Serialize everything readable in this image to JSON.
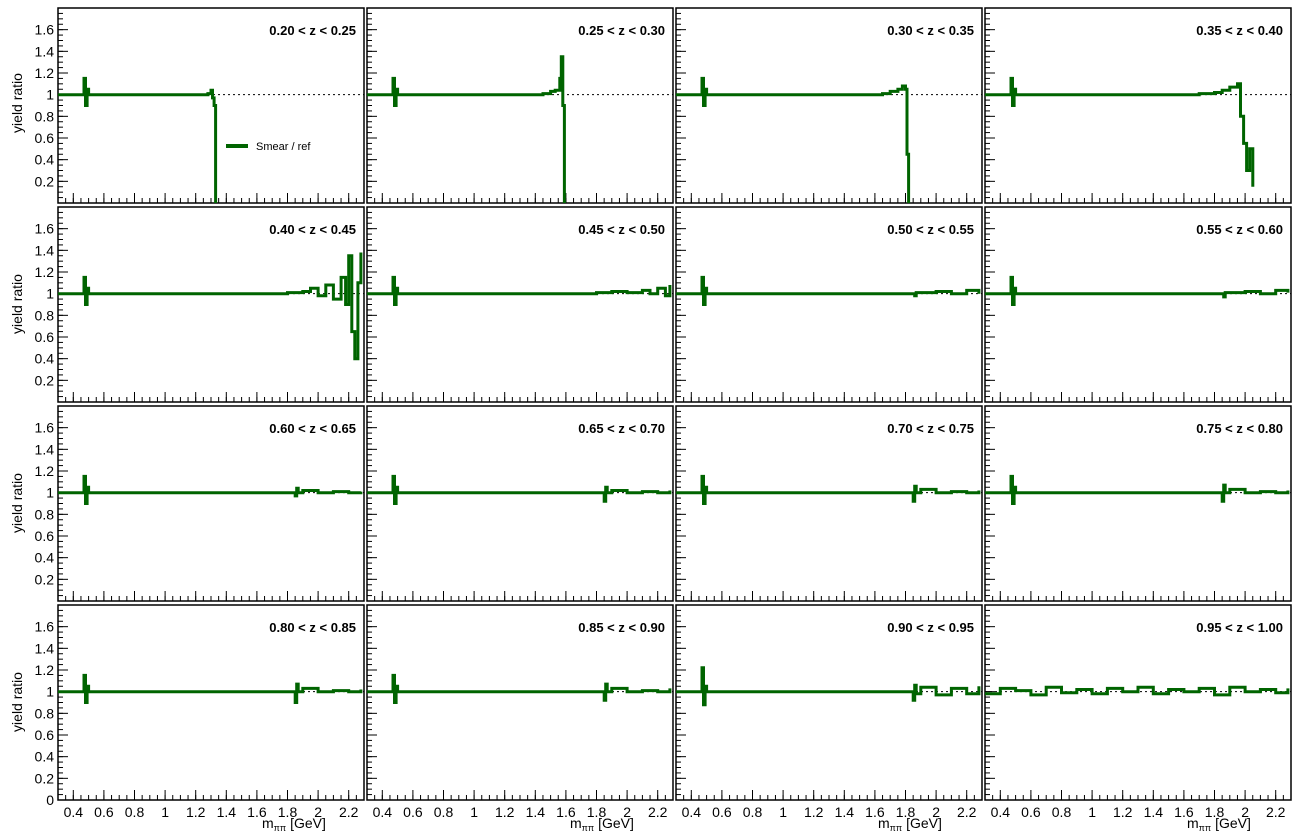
{
  "chart_data": {
    "type": "line",
    "layout": "4x4 grid of panels, shared axes",
    "ylabel": "yield ratio",
    "xlabel": "m",
    "xlabel_sub": "ππ",
    "xlabel_unit": "[GeV]",
    "xlim": [
      0.3,
      2.3
    ],
    "ylim": [
      0,
      1.8
    ],
    "x_ticks": [
      0.4,
      0.6,
      0.8,
      1,
      1.2,
      1.4,
      1.6,
      1.8,
      2,
      2.2
    ],
    "x_tick_labels": [
      "0.4",
      "0.6",
      "0.8",
      "1",
      "1.2",
      "1.4",
      "1.6",
      "1.8",
      "2",
      "2.2"
    ],
    "y_ticks": [
      0.2,
      0.4,
      0.6,
      0.8,
      1,
      1.2,
      1.4,
      1.6
    ],
    "y_tick_labels": [
      "0.2",
      "0.4",
      "0.6",
      "0.8",
      "1",
      "1.2",
      "1.4",
      "1.6"
    ],
    "y_tick_zero_label": "0",
    "reference_line": 1,
    "legend": {
      "label": "Smear  / ref",
      "color": "#006400",
      "panel": 0,
      "placement": "center-right"
    },
    "series_color": "#006400",
    "panels": [
      {
        "zlabel": "0.20 < z < 0.25",
        "series": {
          "name": "Smear  / ref",
          "x": [
            0.3,
            0.46,
            0.47,
            0.48,
            0.49,
            0.5,
            0.52,
            1.28,
            1.3,
            1.31,
            1.32,
            1.33
          ],
          "y": [
            1.0,
            1.0,
            1.15,
            0.9,
            1.05,
            1.0,
            1.0,
            1.01,
            1.04,
            0.97,
            0.9,
            0.0
          ]
        }
      },
      {
        "zlabel": "0.25 < z < 0.30",
        "series": {
          "name": "Smear  / ref",
          "x": [
            0.3,
            0.46,
            0.47,
            0.48,
            0.49,
            0.5,
            0.52,
            1.45,
            1.5,
            1.53,
            1.56,
            1.57,
            1.58,
            1.59
          ],
          "y": [
            1.0,
            1.0,
            1.15,
            0.9,
            1.05,
            1.0,
            1.0,
            1.01,
            1.03,
            1.04,
            1.15,
            1.35,
            0.9,
            0.0
          ]
        }
      },
      {
        "zlabel": "0.30 < z < 0.35",
        "series": {
          "name": "Smear  / ref",
          "x": [
            0.3,
            0.46,
            0.47,
            0.48,
            0.49,
            0.5,
            0.52,
            1.65,
            1.7,
            1.75,
            1.78,
            1.8,
            1.81,
            1.82
          ],
          "y": [
            1.0,
            1.0,
            1.15,
            0.9,
            1.05,
            1.0,
            1.0,
            1.01,
            1.03,
            1.05,
            1.08,
            1.05,
            0.45,
            0.0
          ]
        }
      },
      {
        "zlabel": "0.35 < z < 0.40",
        "series": {
          "name": "Smear  / ref",
          "x": [
            0.3,
            0.46,
            0.47,
            0.48,
            0.49,
            0.5,
            0.52,
            1.7,
            1.8,
            1.85,
            1.9,
            1.95,
            1.97,
            1.99,
            2.01,
            2.03,
            2.05
          ],
          "y": [
            1.0,
            1.0,
            1.15,
            0.9,
            1.05,
            1.0,
            1.0,
            1.01,
            1.02,
            1.04,
            1.07,
            1.1,
            0.8,
            0.55,
            0.3,
            0.5,
            0.15
          ]
        }
      },
      {
        "zlabel": "0.40 < z < 0.45",
        "series": {
          "name": "Smear  / ref",
          "x": [
            0.3,
            0.46,
            0.47,
            0.48,
            0.49,
            0.5,
            0.52,
            1.8,
            1.9,
            1.95,
            2.0,
            2.05,
            2.1,
            2.15,
            2.18,
            2.2,
            2.22,
            2.24,
            2.26,
            2.28
          ],
          "y": [
            1.0,
            1.0,
            1.15,
            0.9,
            1.05,
            1.0,
            1.0,
            1.01,
            1.02,
            1.05,
            0.98,
            1.08,
            0.95,
            1.15,
            0.9,
            1.35,
            0.65,
            0.4,
            1.1,
            1.38
          ]
        }
      },
      {
        "zlabel": "0.45 < z < 0.50",
        "series": {
          "name": "Smear  / ref",
          "x": [
            0.3,
            0.46,
            0.47,
            0.48,
            0.49,
            0.5,
            0.52,
            1.8,
            1.9,
            2.0,
            2.1,
            2.15,
            2.2,
            2.25,
            2.28
          ],
          "y": [
            1.0,
            1.0,
            1.15,
            0.9,
            1.05,
            1.0,
            1.0,
            1.01,
            1.02,
            1.01,
            1.03,
            1.0,
            1.05,
            0.98,
            1.08
          ]
        }
      },
      {
        "zlabel": "0.50 < z < 0.55",
        "series": {
          "name": "Smear  / ref",
          "x": [
            0.3,
            0.46,
            0.47,
            0.48,
            0.49,
            0.5,
            0.52,
            1.85,
            1.86,
            1.87,
            2.0,
            2.1,
            2.2,
            2.28
          ],
          "y": [
            1.0,
            1.0,
            1.15,
            0.9,
            1.05,
            1.0,
            1.0,
            1.0,
            0.98,
            1.01,
            1.02,
            1.0,
            1.03,
            1.0
          ]
        }
      },
      {
        "zlabel": "0.55 < z < 0.60",
        "series": {
          "name": "Smear  / ref",
          "x": [
            0.3,
            0.46,
            0.47,
            0.48,
            0.49,
            0.5,
            0.52,
            1.85,
            1.86,
            1.87,
            2.0,
            2.1,
            2.2,
            2.28
          ],
          "y": [
            1.0,
            1.0,
            1.15,
            0.9,
            1.05,
            1.0,
            1.0,
            1.0,
            0.97,
            1.01,
            1.02,
            1.0,
            1.03,
            1.01
          ]
        }
      },
      {
        "zlabel": "0.60 < z < 0.65",
        "series": {
          "name": "Smear  / ref",
          "x": [
            0.3,
            0.46,
            0.47,
            0.48,
            0.49,
            0.5,
            0.52,
            1.84,
            1.85,
            1.86,
            1.87,
            1.9,
            2.0,
            2.1,
            2.2,
            2.28
          ],
          "y": [
            1.0,
            1.0,
            1.15,
            0.9,
            1.05,
            1.0,
            1.0,
            1.0,
            0.97,
            1.04,
            1.0,
            1.02,
            1.0,
            1.01,
            1.0,
            1.01
          ]
        }
      },
      {
        "zlabel": "0.65 < z < 0.70",
        "series": {
          "name": "Smear  / ref",
          "x": [
            0.3,
            0.46,
            0.47,
            0.48,
            0.49,
            0.5,
            0.52,
            1.84,
            1.85,
            1.86,
            1.87,
            1.9,
            2.0,
            2.1,
            2.2,
            2.28
          ],
          "y": [
            1.0,
            1.0,
            1.15,
            0.9,
            1.05,
            1.0,
            1.0,
            1.0,
            0.92,
            1.05,
            1.0,
            1.02,
            1.0,
            1.01,
            1.0,
            1.02
          ]
        }
      },
      {
        "zlabel": "0.70 < z < 0.75",
        "series": {
          "name": "Smear  / ref",
          "x": [
            0.3,
            0.46,
            0.47,
            0.48,
            0.49,
            0.5,
            0.52,
            1.84,
            1.85,
            1.86,
            1.87,
            1.9,
            2.0,
            2.1,
            2.2,
            2.28
          ],
          "y": [
            1.0,
            1.0,
            1.15,
            0.9,
            1.05,
            1.0,
            1.0,
            1.0,
            0.92,
            1.06,
            1.0,
            1.03,
            1.0,
            1.01,
            1.0,
            1.02
          ]
        }
      },
      {
        "zlabel": "0.75 < z < 0.80",
        "series": {
          "name": "Smear  / ref",
          "x": [
            0.3,
            0.46,
            0.47,
            0.48,
            0.49,
            0.5,
            0.52,
            1.84,
            1.85,
            1.86,
            1.87,
            1.9,
            2.0,
            2.1,
            2.2,
            2.28
          ],
          "y": [
            1.0,
            1.0,
            1.15,
            0.9,
            1.05,
            1.0,
            1.0,
            1.0,
            0.92,
            1.07,
            1.0,
            1.03,
            1.0,
            1.01,
            1.0,
            1.02
          ]
        }
      },
      {
        "zlabel": "0.80 < z < 0.85",
        "series": {
          "name": "Smear  / ref",
          "x": [
            0.3,
            0.46,
            0.47,
            0.48,
            0.49,
            0.5,
            0.52,
            1.84,
            1.85,
            1.86,
            1.87,
            1.9,
            2.0,
            2.1,
            2.2,
            2.28
          ],
          "y": [
            1.0,
            1.0,
            1.15,
            0.9,
            1.05,
            1.0,
            1.0,
            1.0,
            0.9,
            1.07,
            1.0,
            1.03,
            1.0,
            1.01,
            1.0,
            1.02
          ]
        }
      },
      {
        "zlabel": "0.85 < z < 0.90",
        "series": {
          "name": "Smear  / ref",
          "x": [
            0.3,
            0.46,
            0.47,
            0.48,
            0.49,
            0.5,
            0.52,
            1.84,
            1.85,
            1.86,
            1.87,
            1.9,
            2.0,
            2.1,
            2.2,
            2.28
          ],
          "y": [
            1.0,
            1.0,
            1.15,
            0.9,
            1.05,
            1.0,
            1.0,
            1.0,
            0.92,
            1.07,
            1.0,
            1.03,
            1.0,
            1.01,
            1.0,
            1.03
          ]
        }
      },
      {
        "zlabel": "0.90 < z < 0.95",
        "series": {
          "name": "Smear  / ref",
          "x": [
            0.3,
            0.46,
            0.47,
            0.48,
            0.49,
            0.5,
            0.52,
            1.84,
            1.85,
            1.86,
            1.87,
            1.9,
            2.0,
            2.1,
            2.2,
            2.28
          ],
          "y": [
            1.0,
            1.0,
            1.22,
            0.88,
            1.05,
            1.0,
            1.0,
            1.0,
            0.92,
            1.06,
            0.98,
            1.04,
            0.97,
            1.03,
            0.98,
            1.05
          ]
        }
      },
      {
        "zlabel": "0.95 < z < 1.00",
        "series": {
          "name": "Smear  / ref",
          "x": [
            0.3,
            0.4,
            0.5,
            0.6,
            0.7,
            0.8,
            0.9,
            1.0,
            1.1,
            1.2,
            1.3,
            1.4,
            1.5,
            1.6,
            1.7,
            1.8,
            1.9,
            2.0,
            2.1,
            2.2,
            2.28
          ],
          "y": [
            0.98,
            1.03,
            1.01,
            0.97,
            1.04,
            0.99,
            1.02,
            0.98,
            1.03,
            1.0,
            1.04,
            0.98,
            1.02,
            1.0,
            1.03,
            0.97,
            1.04,
            1.0,
            1.02,
            0.99,
            1.03
          ]
        }
      }
    ]
  }
}
